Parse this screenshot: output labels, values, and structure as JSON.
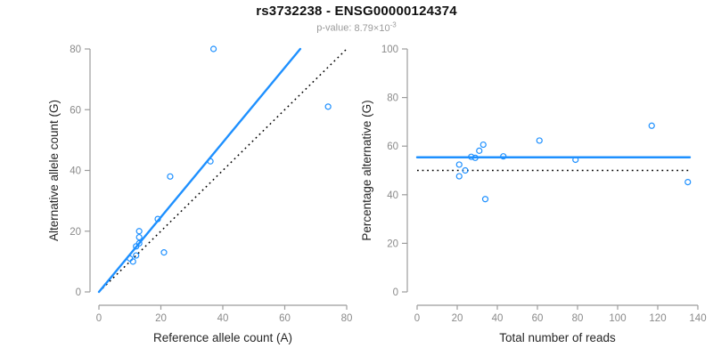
{
  "header": {
    "title": "rs3732238 - ENSG00000124374",
    "pvalue": {
      "label": "p-value:",
      "mantissa": "8.79",
      "base": "×10",
      "exponent": "-3"
    }
  },
  "colors": {
    "accent": "#1E90FF",
    "reference_line": "#000000",
    "axis_line": "#9C9C9C",
    "tick_label": "#8A8A8A",
    "axis_title": "#262626",
    "title_text": "#111111",
    "subtitle_text": "#9B9B9B",
    "background": "#FFFFFF"
  },
  "chart_data": [
    {
      "type": "scatter",
      "panel": "left",
      "xlabel": "Reference allele count (A)",
      "ylabel": "Alternative allele count (G)",
      "xlim": [
        0,
        80
      ],
      "ylim": [
        0,
        80
      ],
      "xticks": [
        0,
        20,
        40,
        60,
        80
      ],
      "yticks": [
        0,
        20,
        40,
        60,
        80
      ],
      "marker": "open-circle",
      "grid": false,
      "legend": null,
      "points": [
        [
          10,
          11
        ],
        [
          11,
          10
        ],
        [
          12,
          12
        ],
        [
          12,
          15
        ],
        [
          13,
          16
        ],
        [
          13,
          18
        ],
        [
          13,
          20
        ],
        [
          19,
          24
        ],
        [
          21,
          13
        ],
        [
          23,
          38
        ],
        [
          36,
          43
        ],
        [
          37,
          80
        ],
        [
          74,
          61
        ]
      ],
      "fit_line": {
        "x1": 0,
        "y1": 0,
        "x2": 65,
        "y2": 80,
        "style": "solid"
      },
      "reference_line": {
        "x1": 0,
        "y1": 0,
        "x2": 80,
        "y2": 80,
        "style": "dotted"
      }
    },
    {
      "type": "scatter",
      "panel": "right",
      "xlabel": "Total number of reads",
      "ylabel": "Percentage alternative (G)",
      "xlim": [
        0,
        140
      ],
      "ylim": [
        0,
        100
      ],
      "xticks": [
        0,
        20,
        40,
        60,
        80,
        100,
        120,
        140
      ],
      "yticks": [
        0,
        20,
        40,
        60,
        80,
        100
      ],
      "marker": "open-circle",
      "grid": false,
      "legend": null,
      "points": [
        [
          21,
          47.6
        ],
        [
          21,
          52.4
        ],
        [
          24,
          50.0
        ],
        [
          27,
          55.6
        ],
        [
          29,
          55.2
        ],
        [
          31,
          58.1
        ],
        [
          33,
          60.6
        ],
        [
          34,
          38.2
        ],
        [
          43,
          55.8
        ],
        [
          61,
          62.3
        ],
        [
          79,
          54.4
        ],
        [
          117,
          68.4
        ],
        [
          135,
          45.2
        ]
      ],
      "fit_line": {
        "x1": 0,
        "y1": 55.4,
        "x2": 136,
        "y2": 55.4,
        "style": "solid"
      },
      "reference_line": {
        "x1": 0,
        "y1": 50,
        "x2": 136,
        "y2": 50,
        "style": "dotted"
      }
    }
  ]
}
